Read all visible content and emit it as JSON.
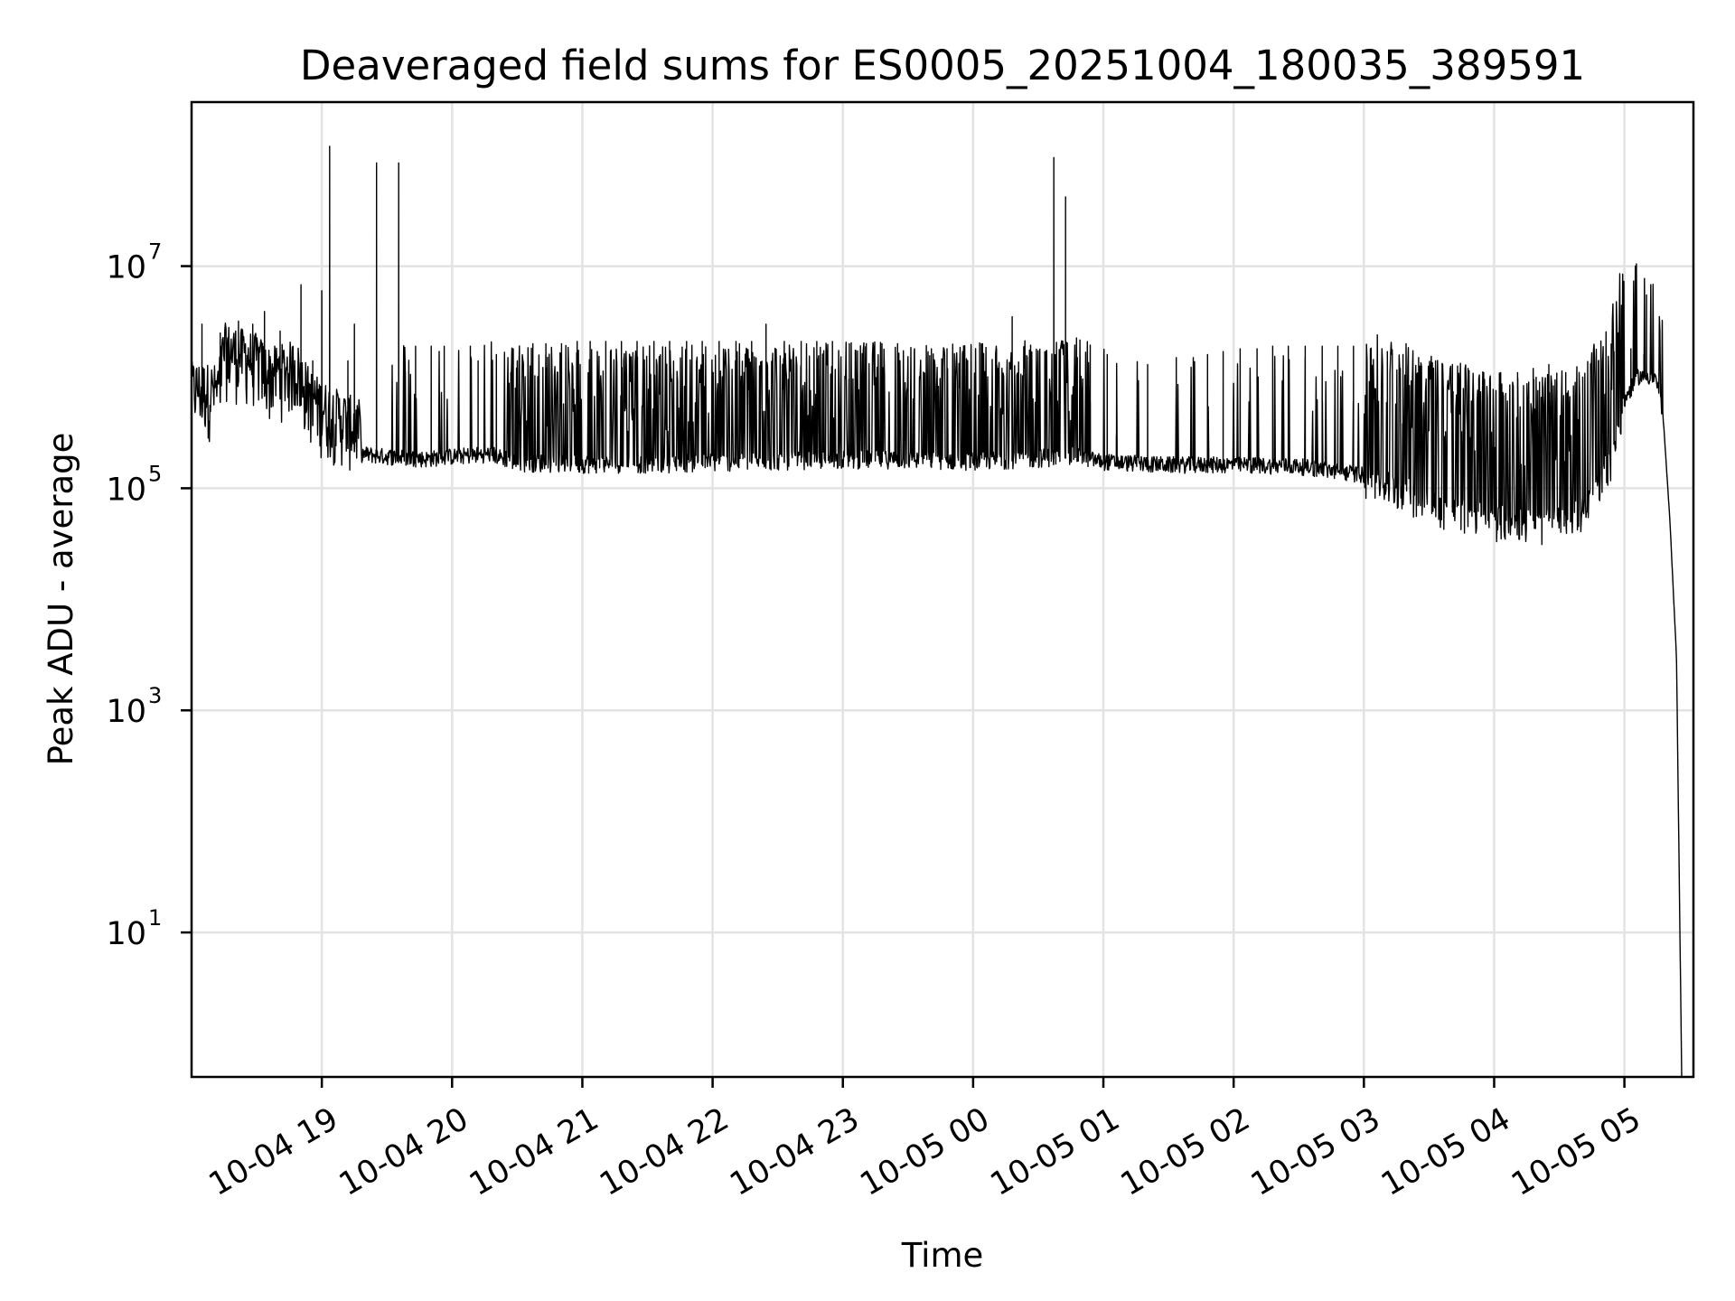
{
  "chart_data": {
    "type": "line",
    "title": "Deaveraged field sums for ES0005_20251004_180035_389591",
    "xlabel": "Time",
    "ylabel": "Peak ADU - average",
    "yscale": "log",
    "ylim": [
      0.5,
      300000000
    ],
    "xlim": [
      18.0,
      29.53
    ],
    "grid": true,
    "x_unit": "hours since 2025-10-04 00:00",
    "x_ticks": [
      {
        "x": 19,
        "label": "10-04 19"
      },
      {
        "x": 20,
        "label": "10-04 20"
      },
      {
        "x": 21,
        "label": "10-04 21"
      },
      {
        "x": 22,
        "label": "10-04 22"
      },
      {
        "x": 23,
        "label": "10-04 23"
      },
      {
        "x": 24,
        "label": "10-05 00"
      },
      {
        "x": 25,
        "label": "10-05 01"
      },
      {
        "x": 26,
        "label": "10-05 02"
      },
      {
        "x": 27,
        "label": "10-05 03"
      },
      {
        "x": 28,
        "label": "10-05 04"
      },
      {
        "x": 29,
        "label": "10-05 05"
      }
    ],
    "y_ticks": [
      {
        "value": 10,
        "base": "10",
        "exp": "1"
      },
      {
        "value": 1000,
        "base": "10",
        "exp": "3"
      },
      {
        "value": 100000,
        "base": "10",
        "exp": "5"
      },
      {
        "value": 10000000,
        "base": "10",
        "exp": "7"
      }
    ],
    "series": [
      {
        "name": "Peak ADU - average",
        "color": "#000000",
        "baseline": [
          [
            18.0,
            450000
          ],
          [
            18.2,
            420000
          ],
          [
            18.25,
            1000000
          ],
          [
            18.5,
            800000
          ],
          [
            18.6,
            600000
          ],
          [
            18.8,
            700000
          ],
          [
            18.9,
            400000
          ],
          [
            19.0,
            300000
          ],
          [
            19.1,
            260000
          ],
          [
            19.3,
            200000
          ],
          [
            19.5,
            190000
          ],
          [
            19.8,
            180000
          ],
          [
            20.0,
            190000
          ],
          [
            20.3,
            200000
          ],
          [
            20.5,
            165000
          ],
          [
            21.0,
            160000
          ],
          [
            21.5,
            160000
          ],
          [
            22.0,
            165000
          ],
          [
            22.5,
            170000
          ],
          [
            23.0,
            175000
          ],
          [
            23.5,
            175000
          ],
          [
            24.0,
            170000
          ],
          [
            24.5,
            180000
          ],
          [
            24.8,
            190000
          ],
          [
            25.0,
            170000
          ],
          [
            25.5,
            160000
          ],
          [
            26.0,
            160000
          ],
          [
            26.5,
            155000
          ],
          [
            27.0,
            130000
          ],
          [
            27.3,
            100000
          ],
          [
            27.6,
            70000
          ],
          [
            28.0,
            55000
          ],
          [
            28.4,
            50000
          ],
          [
            28.7,
            65000
          ],
          [
            28.9,
            200000
          ],
          [
            29.0,
            600000
          ],
          [
            29.1,
            1000000
          ],
          [
            29.2,
            1000000
          ],
          [
            29.25,
            900000
          ],
          [
            29.3,
            400000
          ],
          [
            29.35,
            50000
          ],
          [
            29.4,
            3000
          ],
          [
            29.44,
            0.5
          ]
        ],
        "spikes": [
          [
            18.08,
            3000000
          ],
          [
            18.22,
            2500000
          ],
          [
            18.28,
            1500000
          ],
          [
            18.36,
            3200000
          ],
          [
            18.47,
            3000000
          ],
          [
            18.56,
            3900000
          ],
          [
            18.68,
            2600000
          ],
          [
            18.84,
            6800000
          ],
          [
            18.93,
            1400000
          ],
          [
            19.0,
            6000000
          ],
          [
            19.06,
            120000000
          ],
          [
            19.2,
            1400000
          ],
          [
            19.25,
            3000000
          ],
          [
            19.42,
            85000000
          ],
          [
            19.59,
            85000000
          ],
          [
            19.72,
            1900000
          ],
          [
            19.84,
            1900000
          ],
          [
            19.94,
            1900000
          ],
          [
            20.14,
            1900000
          ],
          [
            20.2,
            1400000
          ],
          [
            20.34,
            1600000
          ],
          [
            20.47,
            1800000
          ],
          [
            20.5,
            1400000
          ],
          [
            20.62,
            2000000
          ],
          [
            20.72,
            2000000
          ],
          [
            20.84,
            2000000
          ],
          [
            20.96,
            2100000
          ],
          [
            21.06,
            2100000
          ],
          [
            21.18,
            2100000
          ],
          [
            21.3,
            2100000
          ],
          [
            21.42,
            2100000
          ],
          [
            21.55,
            2100000
          ],
          [
            21.67,
            2100000
          ],
          [
            21.8,
            2100000
          ],
          [
            21.92,
            2100000
          ],
          [
            22.05,
            2100000
          ],
          [
            22.18,
            2100000
          ],
          [
            22.3,
            2100000
          ],
          [
            22.41,
            3000000
          ],
          [
            22.55,
            2100000
          ],
          [
            22.68,
            2100000
          ],
          [
            22.8,
            2100000
          ],
          [
            22.92,
            2100000
          ],
          [
            23.05,
            2000000
          ],
          [
            23.18,
            2000000
          ],
          [
            23.3,
            2000000
          ],
          [
            23.42,
            2000000
          ],
          [
            23.55,
            1800000
          ],
          [
            23.68,
            1800000
          ],
          [
            23.8,
            1800000
          ],
          [
            23.92,
            1700000
          ],
          [
            24.05,
            1700000
          ],
          [
            24.18,
            1800000
          ],
          [
            24.3,
            3500000
          ],
          [
            24.44,
            1600000
          ],
          [
            24.55,
            1700000
          ],
          [
            24.62,
            95000000
          ],
          [
            24.71,
            42000000
          ],
          [
            24.8,
            1500000
          ],
          [
            24.9,
            600000
          ],
          [
            25.03,
            1600000
          ],
          [
            25.1,
            300000
          ],
          [
            25.34,
            1300000
          ],
          [
            25.56,
            1500000
          ],
          [
            25.69,
            1500000
          ],
          [
            25.8,
            1600000
          ],
          [
            25.92,
            1700000
          ],
          [
            26.05,
            1800000
          ],
          [
            26.18,
            1800000
          ],
          [
            26.3,
            1900000
          ],
          [
            26.42,
            1900000
          ],
          [
            26.55,
            1900000
          ],
          [
            26.68,
            1900000
          ],
          [
            26.8,
            1900000
          ],
          [
            26.92,
            1900000
          ],
          [
            27.05,
            1800000
          ],
          [
            27.18,
            1700000
          ],
          [
            27.3,
            1600000
          ],
          [
            27.42,
            1500000
          ],
          [
            27.55,
            1400000
          ],
          [
            27.68,
            1300000
          ],
          [
            27.8,
            1200000
          ],
          [
            27.92,
            1100000
          ],
          [
            28.05,
            1100000
          ],
          [
            28.18,
            1100000
          ],
          [
            28.3,
            1200000
          ],
          [
            28.42,
            1300000
          ],
          [
            28.55,
            1100000
          ],
          [
            28.68,
            1000000
          ],
          [
            28.8,
            1400000
          ],
          [
            28.92,
            1700000
          ],
          [
            29.05,
            1800000
          ],
          [
            29.15,
            1600000
          ],
          [
            29.17,
            5500000
          ]
        ]
      }
    ]
  }
}
